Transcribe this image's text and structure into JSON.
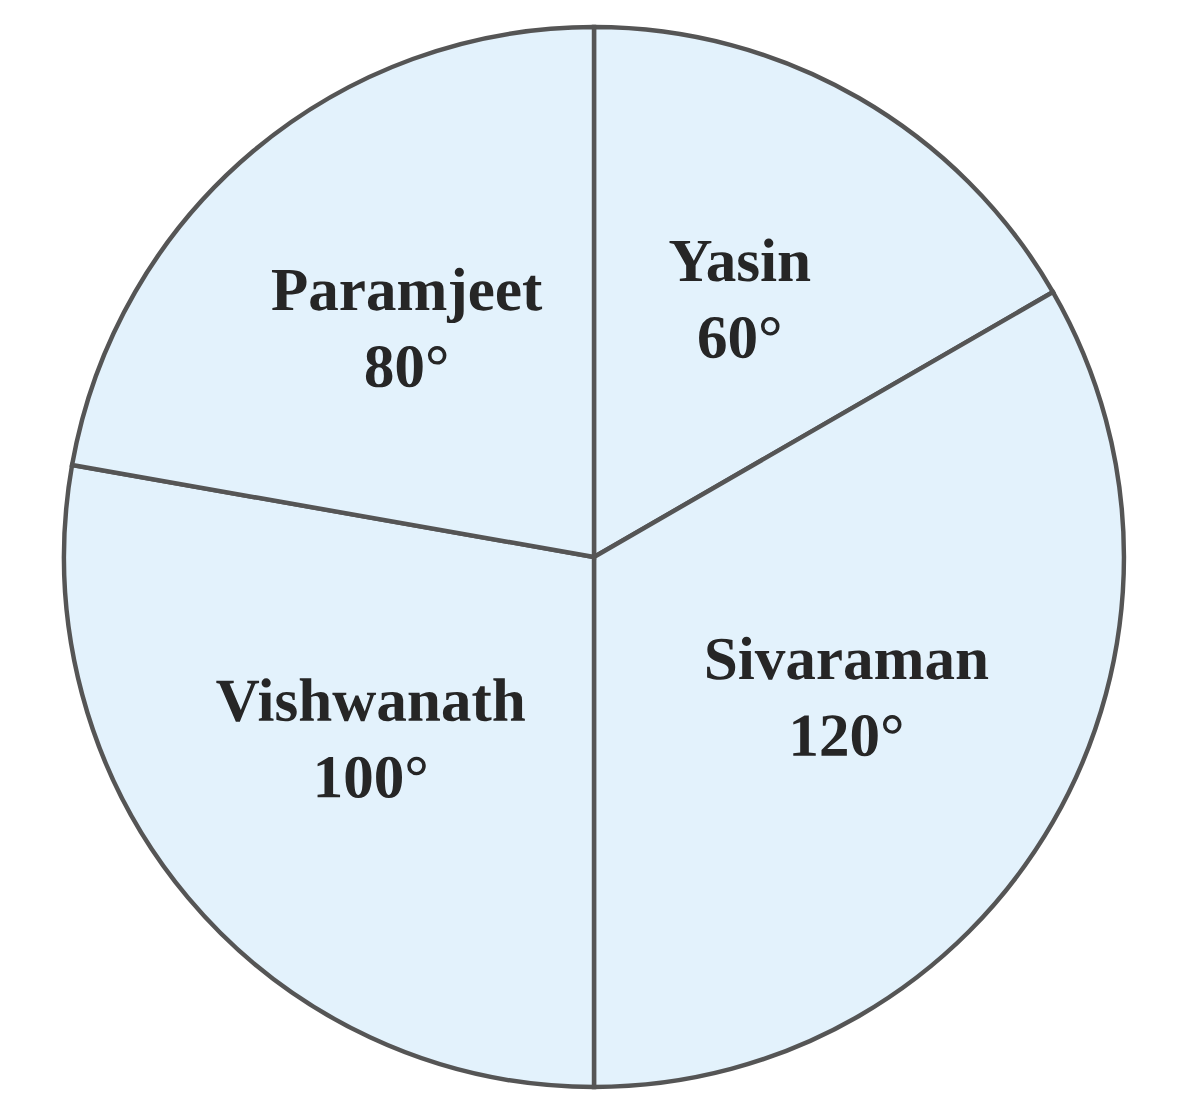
{
  "chart_data": {
    "type": "pie",
    "categories": [
      "Yasin",
      "Sivaraman",
      "Vishwanath",
      "Paramjeet"
    ],
    "values": [
      60,
      120,
      100,
      80
    ],
    "value_labels": [
      "60°",
      "120°",
      "100°",
      "80°"
    ],
    "colors": [
      "#e3f2fc",
      "#e3f2fc",
      "#e3f2fc",
      "#e3f2fc"
    ]
  }
}
